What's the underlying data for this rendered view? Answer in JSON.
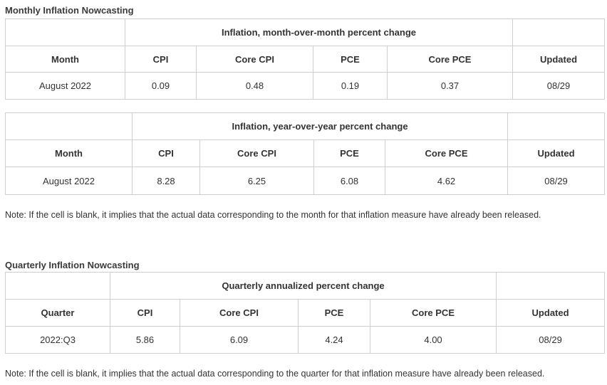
{
  "monthly": {
    "title": "Monthly Inflation Nowcasting",
    "mom": {
      "caption": "Inflation, month-over-month percent change",
      "headers": [
        "Month",
        "CPI",
        "Core CPI",
        "PCE",
        "Core PCE",
        "Updated"
      ],
      "rows": [
        [
          "August 2022",
          "0.09",
          "0.48",
          "0.19",
          "0.37",
          "08/29"
        ]
      ]
    },
    "yoy": {
      "caption": "Inflation, year-over-year percent change",
      "headers": [
        "Month",
        "CPI",
        "Core CPI",
        "PCE",
        "Core PCE",
        "Updated"
      ],
      "rows": [
        [
          "August 2022",
          "8.28",
          "6.25",
          "6.08",
          "4.62",
          "08/29"
        ]
      ]
    },
    "note": "Note: If the cell is blank, it implies that the actual data corresponding to the month for that inflation measure have already been released."
  },
  "quarterly": {
    "title": "Quarterly Inflation Nowcasting",
    "table": {
      "caption": "Quarterly annualized percent change",
      "headers": [
        "Quarter",
        "CPI",
        "Core CPI",
        "PCE",
        "Core PCE",
        "Updated"
      ],
      "rows": [
        [
          "2022:Q3",
          "5.86",
          "6.09",
          "4.24",
          "4.00",
          "08/29"
        ]
      ]
    },
    "note": "Note: If the cell is blank, it implies that the actual data corresponding to the quarter for that inflation measure have already been released."
  }
}
